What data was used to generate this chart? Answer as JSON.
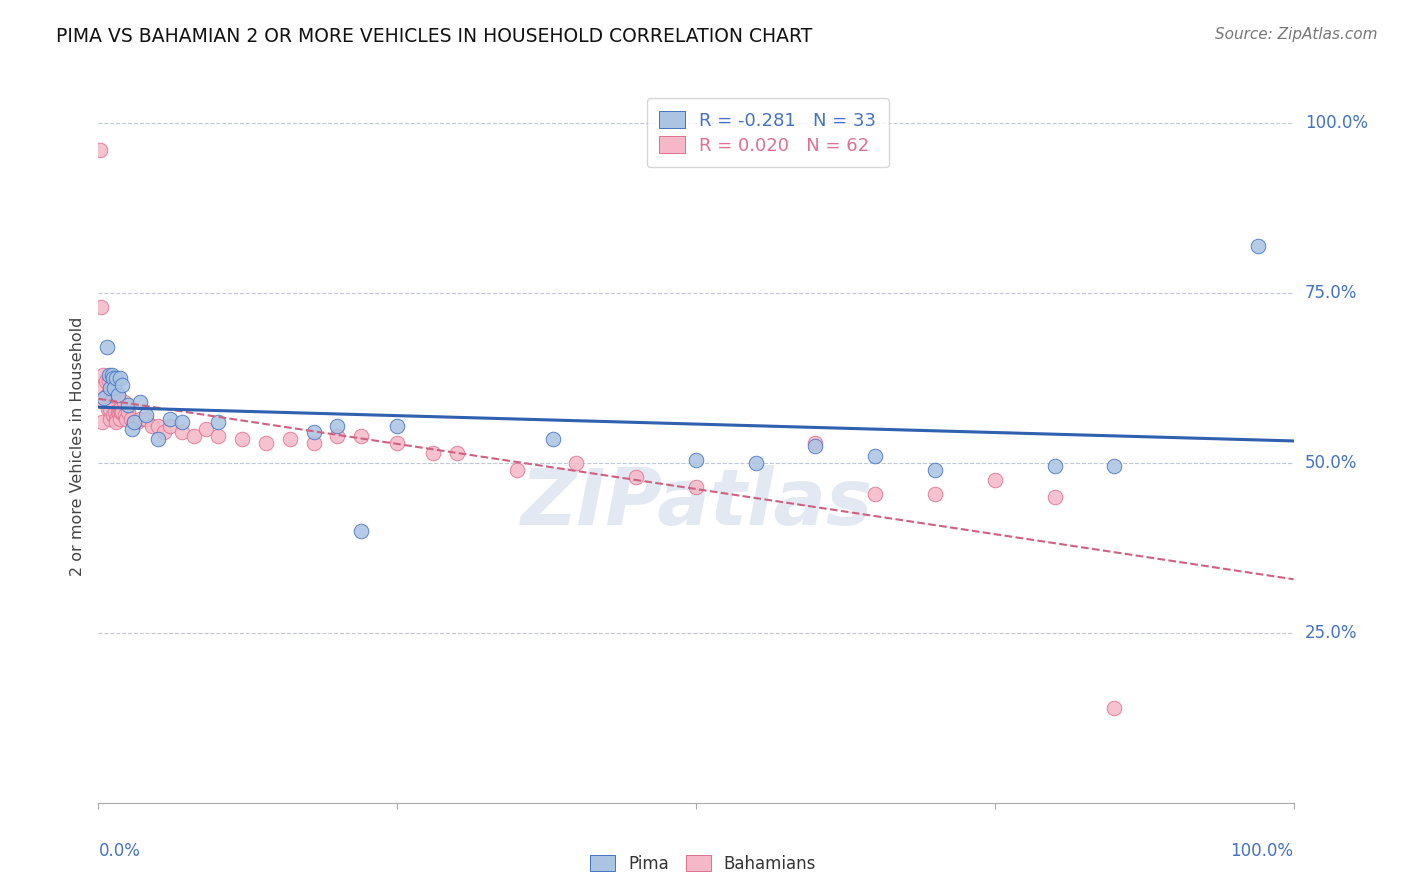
{
  "title": "PIMA VS BAHAMIAN 2 OR MORE VEHICLES IN HOUSEHOLD CORRELATION CHART",
  "source_text": "Source: ZipAtlas.com",
  "ylabel": "2 or more Vehicles in Household",
  "watermark": "ZIPatlas",
  "pima_R": -0.281,
  "pima_N": 33,
  "bahamian_R": 0.02,
  "bahamian_N": 62,
  "pima_color": "#aac4e2",
  "pima_edge_color": "#4472c4",
  "bahamian_color": "#f5b8c8",
  "bahamian_edge_color": "#e07090",
  "ytick_labels": [
    "100.0%",
    "75.0%",
    "50.0%",
    "25.0%"
  ],
  "ytick_values": [
    1.0,
    0.75,
    0.5,
    0.25
  ],
  "pima_x": [
    0.005,
    0.007,
    0.009,
    0.01,
    0.011,
    0.012,
    0.013,
    0.015,
    0.016,
    0.018,
    0.02,
    0.025,
    0.028,
    0.03,
    0.035,
    0.04,
    0.05,
    0.06,
    0.07,
    0.1,
    0.18,
    0.2,
    0.22,
    0.25,
    0.38,
    0.5,
    0.55,
    0.6,
    0.65,
    0.7,
    0.8,
    0.85,
    0.97
  ],
  "pima_y": [
    0.595,
    0.67,
    0.63,
    0.61,
    0.63,
    0.625,
    0.61,
    0.625,
    0.6,
    0.625,
    0.615,
    0.585,
    0.55,
    0.56,
    0.59,
    0.57,
    0.535,
    0.565,
    0.56,
    0.56,
    0.545,
    0.555,
    0.4,
    0.555,
    0.535,
    0.505,
    0.5,
    0.525,
    0.51,
    0.49,
    0.495,
    0.495,
    0.82
  ],
  "bahamian_x": [
    0.001,
    0.002,
    0.003,
    0.003,
    0.004,
    0.005,
    0.006,
    0.007,
    0.008,
    0.009,
    0.01,
    0.01,
    0.011,
    0.012,
    0.012,
    0.013,
    0.014,
    0.015,
    0.015,
    0.016,
    0.016,
    0.017,
    0.018,
    0.018,
    0.019,
    0.02,
    0.021,
    0.022,
    0.023,
    0.025,
    0.027,
    0.03,
    0.032,
    0.035,
    0.04,
    0.045,
    0.05,
    0.055,
    0.06,
    0.07,
    0.08,
    0.09,
    0.1,
    0.12,
    0.14,
    0.16,
    0.18,
    0.2,
    0.22,
    0.25,
    0.28,
    0.3,
    0.35,
    0.4,
    0.45,
    0.5,
    0.6,
    0.65,
    0.7,
    0.75,
    0.8,
    0.85
  ],
  "bahamian_y": [
    0.96,
    0.73,
    0.61,
    0.56,
    0.63,
    0.59,
    0.62,
    0.6,
    0.58,
    0.62,
    0.565,
    0.58,
    0.6,
    0.6,
    0.57,
    0.6,
    0.575,
    0.565,
    0.56,
    0.575,
    0.6,
    0.575,
    0.565,
    0.58,
    0.575,
    0.575,
    0.59,
    0.57,
    0.565,
    0.575,
    0.565,
    0.56,
    0.56,
    0.565,
    0.565,
    0.555,
    0.555,
    0.545,
    0.555,
    0.545,
    0.54,
    0.55,
    0.54,
    0.535,
    0.53,
    0.535,
    0.53,
    0.54,
    0.54,
    0.53,
    0.515,
    0.515,
    0.49,
    0.5,
    0.48,
    0.465,
    0.53,
    0.455,
    0.455,
    0.475,
    0.45,
    0.14
  ],
  "pima_line_color": "#3060b0",
  "bahamian_line_color": "#d06080",
  "xlim": [
    0.0,
    1.0
  ],
  "ylim": [
    0.0,
    1.05
  ]
}
